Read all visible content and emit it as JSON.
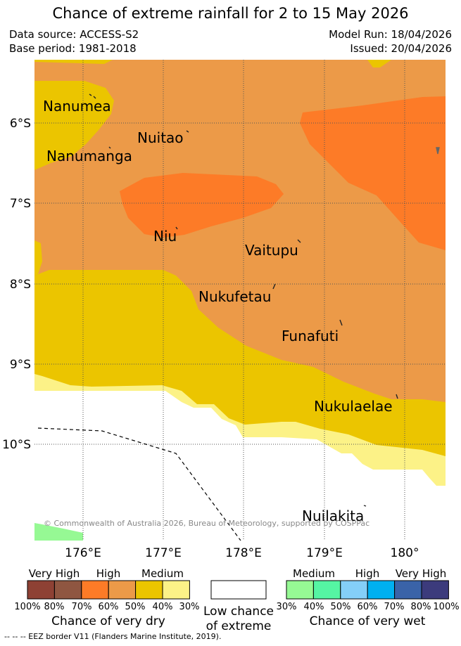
{
  "title": "Chance of extreme rainfall for 2 to 15 May 2026",
  "meta": {
    "data_source": "Data source: ACCESS-S2",
    "base_period": "Base period: 1981-2018",
    "model_run": "Model Run: 18/04/2026",
    "issued": "Issued: 20/04/2026"
  },
  "axes": {
    "lat_ticks": [
      "6°S",
      "7°S",
      "8°S",
      "9°S",
      "10°S"
    ],
    "lon_ticks": [
      "176°E",
      "177°E",
      "178°E",
      "179°E",
      "180°"
    ]
  },
  "places": [
    "Nanumea",
    "Nuitao",
    "Nanumanga",
    "Niu",
    "Vaitupu",
    "Nukufetau",
    "Funafuti",
    "Nukulaelae",
    "Nuilakita"
  ],
  "copyright": "© Commonwealth of Australia 2026, Bureau of Meteorology, supported by COSPPac",
  "legend": {
    "dry": {
      "headers": [
        "Very High",
        "High",
        "Medium"
      ],
      "percents": [
        "100%",
        "80%",
        "70%",
        "60%",
        "50%",
        "40%",
        "30%"
      ],
      "caption": "Chance of very dry",
      "colors": [
        "#8e4134",
        "#8f5641",
        "#fd7b27",
        "#ec9a48",
        "#ebc500",
        "#fcf287"
      ]
    },
    "low": {
      "caption_line1": "Low chance",
      "caption_line2": "of extreme"
    },
    "wet": {
      "headers": [
        "Medium",
        "High",
        "Very High"
      ],
      "percents": [
        "30%",
        "40%",
        "50%",
        "60%",
        "70%",
        "80%",
        "100%"
      ],
      "caption": "Chance of very wet",
      "colors": [
        "#96f994",
        "#55f5a3",
        "#84cff8",
        "#00b0f0",
        "#3a63a8",
        "#3c3b7c"
      ]
    }
  },
  "footnote": "--  --  -- EEZ border V11 (Flanders Marine Institute, 2019)."
}
